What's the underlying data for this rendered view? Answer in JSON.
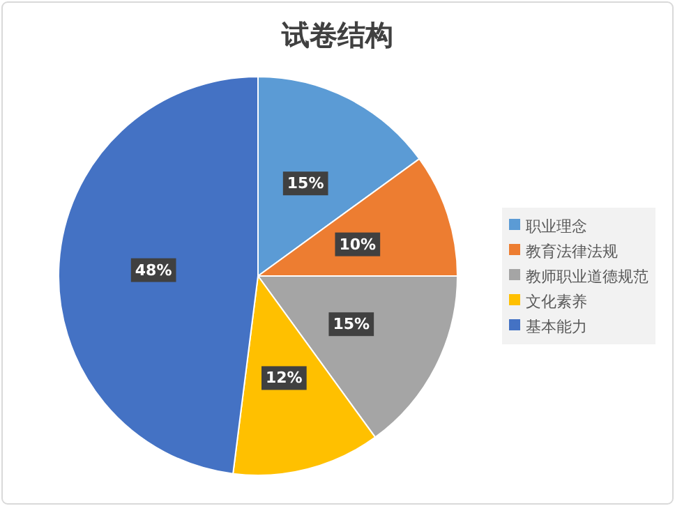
{
  "chart_data": {
    "type": "pie",
    "title": "试卷结构",
    "categories": [
      "职业理念",
      "教育法律法规",
      "教师职业道德规范",
      "文化素养",
      "基本能力"
    ],
    "values": [
      15,
      10,
      15,
      12,
      48
    ],
    "colors": [
      "#5b9bd5",
      "#ed7d31",
      "#a5a5a5",
      "#ffc000",
      "#4472c4"
    ],
    "value_labels": [
      "15%",
      "10%",
      "15%",
      "12%",
      "48%"
    ],
    "legend": "right"
  }
}
